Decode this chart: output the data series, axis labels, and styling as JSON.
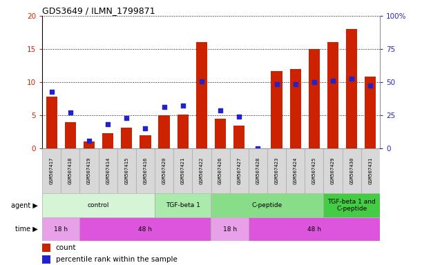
{
  "title": "GDS3649 / ILMN_1799871",
  "samples": [
    "GSM507417",
    "GSM507418",
    "GSM507419",
    "GSM507414",
    "GSM507415",
    "GSM507416",
    "GSM507420",
    "GSM507421",
    "GSM507422",
    "GSM507426",
    "GSM507427",
    "GSM507428",
    "GSM507423",
    "GSM507424",
    "GSM507425",
    "GSM507429",
    "GSM507430",
    "GSM507431"
  ],
  "counts": [
    7.8,
    4.0,
    1.0,
    2.3,
    3.1,
    2.0,
    5.0,
    5.1,
    16.0,
    4.5,
    3.4,
    0.0,
    11.7,
    12.0,
    15.0,
    16.0,
    18.0,
    10.8
  ],
  "percentiles": [
    42.5,
    27.0,
    6.0,
    18.5,
    23.0,
    15.0,
    31.5,
    32.5,
    50.5,
    28.5,
    24.0,
    0.0,
    48.5,
    48.5,
    50.0,
    51.0,
    52.5,
    47.5
  ],
  "bar_color": "#cc2200",
  "dot_color": "#2222cc",
  "ylim_left": [
    0,
    20
  ],
  "ylim_right": [
    0,
    100
  ],
  "yticks_left": [
    0,
    5,
    10,
    15,
    20
  ],
  "yticks_right": [
    0,
    25,
    50,
    75,
    100
  ],
  "agent_groups": [
    {
      "label": "control",
      "start": 0,
      "end": 6,
      "color": "#d6f5d6"
    },
    {
      "label": "TGF-beta 1",
      "start": 6,
      "end": 9,
      "color": "#aaeaaa"
    },
    {
      "label": "C-peptide",
      "start": 9,
      "end": 15,
      "color": "#88dd88"
    },
    {
      "label": "TGF-beta 1 and\nC-peptide",
      "start": 15,
      "end": 18,
      "color": "#44cc44"
    }
  ],
  "time_groups": [
    {
      "label": "18 h",
      "start": 0,
      "end": 2,
      "color": "#e8a0e8"
    },
    {
      "label": "48 h",
      "start": 2,
      "end": 9,
      "color": "#dd55dd"
    },
    {
      "label": "18 h",
      "start": 9,
      "end": 11,
      "color": "#e8a0e8"
    },
    {
      "label": "48 h",
      "start": 11,
      "end": 18,
      "color": "#dd55dd"
    }
  ],
  "legend_count_color": "#cc2200",
  "legend_pct_color": "#2222cc",
  "tick_color_left": "#cc2200",
  "tick_color_right": "#2222cc",
  "sample_bg": "#d8d8d8"
}
